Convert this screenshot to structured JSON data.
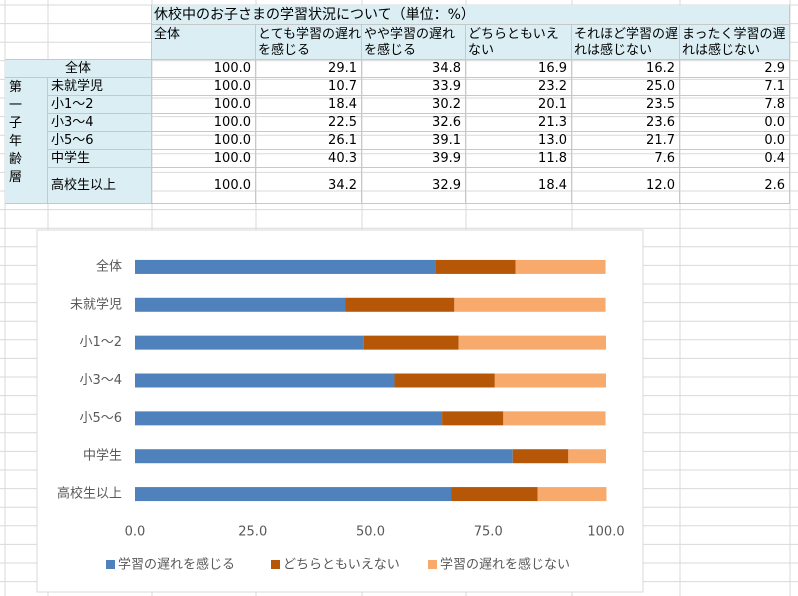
{
  "table": {
    "title": "休校中のお子さまの学習状況について（単位：%）",
    "columns": [
      "全体",
      "とても学習の遅れを感じる",
      "やや学習の遅れを感じる",
      "どちらともいえない",
      "それほど学習の遅れは感じない",
      "まったく学習の遅れは感じない"
    ],
    "total_row": {
      "label": "全体",
      "cells": [
        "100.0",
        "29.1",
        "34.8",
        "16.9",
        "16.2",
        "2.9"
      ]
    },
    "group_label": "第一子年齢層",
    "rows": [
      {
        "label": "未就学児",
        "cells": [
          "100.0",
          "10.7",
          "33.9",
          "23.2",
          "25.0",
          "7.1"
        ]
      },
      {
        "label": "小1～2",
        "cells": [
          "100.0",
          "18.4",
          "30.2",
          "20.1",
          "23.5",
          "7.8"
        ]
      },
      {
        "label": "小3～4",
        "cells": [
          "100.0",
          "22.5",
          "32.6",
          "21.3",
          "23.6",
          "0.0"
        ]
      },
      {
        "label": "小5～6",
        "cells": [
          "100.0",
          "26.1",
          "39.1",
          "13.0",
          "21.7",
          "0.0"
        ]
      },
      {
        "label": "中学生",
        "cells": [
          "100.0",
          "40.3",
          "39.9",
          "11.8",
          "7.6",
          "0.4"
        ]
      },
      {
        "label": "高校生以上",
        "cells": [
          "100.0",
          "34.2",
          "32.9",
          "18.4",
          "12.0",
          "2.6"
        ]
      }
    ]
  },
  "chart_data": {
    "type": "stacked-barh",
    "categories": [
      "全体",
      "未就学児",
      "小1～2",
      "小3～4",
      "小5～6",
      "中学生",
      "高校生以上"
    ],
    "series": [
      {
        "name": "学習の遅れを感じる",
        "color": "#4f81bd",
        "values": [
          63.9,
          44.6,
          48.6,
          55.1,
          65.2,
          80.2,
          67.1
        ]
      },
      {
        "name": "どちらともいえない",
        "color": "#b65708",
        "values": [
          16.9,
          23.2,
          20.1,
          21.3,
          13.0,
          11.8,
          18.4
        ]
      },
      {
        "name": "学習の遅れを感じない",
        "color": "#f7aa6b",
        "values": [
          19.1,
          32.1,
          31.3,
          23.6,
          21.7,
          8.0,
          14.6
        ]
      }
    ],
    "xlim": [
      0,
      100
    ],
    "xticks": [
      {
        "value": 0,
        "label": "0.0"
      },
      {
        "value": 25,
        "label": "25.0"
      },
      {
        "value": 50,
        "label": "50.0"
      },
      {
        "value": 75,
        "label": "75.0"
      },
      {
        "value": 100,
        "label": "100.0"
      }
    ],
    "grid": false,
    "legend": "bottom"
  }
}
